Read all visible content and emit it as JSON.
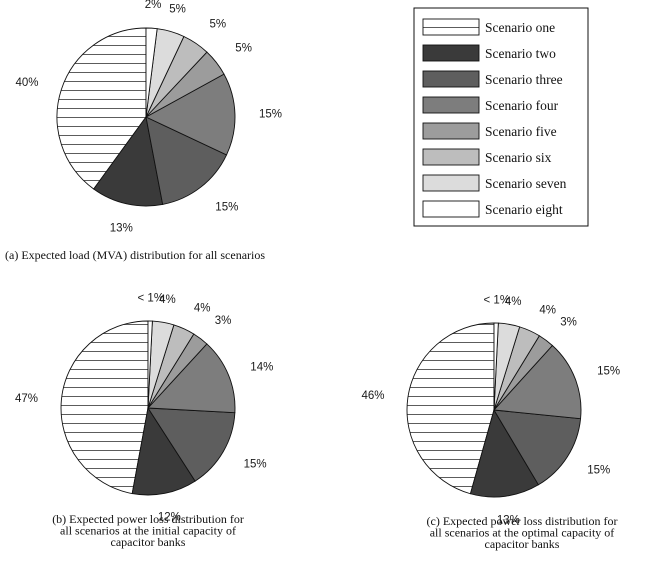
{
  "legend": {
    "entries": [
      "Scenario one",
      "Scenario two",
      "Scenario three",
      "Scenario four",
      "Scenario five",
      "Scenario six",
      "Scenario seven",
      "Scenario eight"
    ]
  },
  "series_styles": [
    {
      "fill": "#ffffff",
      "pattern": "horizontal-lines"
    },
    {
      "fill": "#3a3a3a"
    },
    {
      "fill": "#5e5e5e"
    },
    {
      "fill": "#7d7d7d"
    },
    {
      "fill": "#9c9c9c"
    },
    {
      "fill": "#bdbdbd"
    },
    {
      "fill": "#dcdcdc"
    },
    {
      "fill": "#ffffff"
    }
  ],
  "chart_data": [
    {
      "type": "pie",
      "caption": [
        "(a) Expected load (MVA) distribution for all scenarios"
      ],
      "categories": [
        "Scenario one",
        "Scenario two",
        "Scenario three",
        "Scenario four",
        "Scenario five",
        "Scenario six",
        "Scenario seven",
        "Scenario eight"
      ],
      "values": [
        40,
        13,
        15,
        15,
        5,
        5,
        5,
        2
      ],
      "labels": [
        "40%",
        "13%",
        "15%",
        "15%",
        "5%",
        "5%",
        "5%",
        "2%"
      ]
    },
    {
      "type": "pie",
      "caption": [
        "(b) Expected power loss distribution for",
        "all scenarios at the initial capacity of",
        "capacitor banks"
      ],
      "categories": [
        "Scenario one",
        "Scenario two",
        "Scenario three",
        "Scenario four",
        "Scenario five",
        "Scenario six",
        "Scenario seven",
        "Scenario eight"
      ],
      "values": [
        47,
        12,
        15,
        14,
        3,
        4,
        4,
        0.8
      ],
      "labels": [
        "47%",
        "12%",
        "15%",
        "14%",
        "3%",
        "4%",
        "4%",
        "< 1%"
      ]
    },
    {
      "type": "pie",
      "caption": [
        "(c) Expected power loss distribution for",
        "all scenarios at the optimal capacity of",
        "capacitor banks"
      ],
      "categories": [
        "Scenario one",
        "Scenario two",
        "Scenario three",
        "Scenario four",
        "Scenario five",
        "Scenario six",
        "Scenario seven",
        "Scenario eight"
      ],
      "values": [
        46,
        13,
        15,
        15,
        3,
        4,
        4,
        0.8
      ],
      "labels": [
        "46%",
        "13%",
        "15%",
        "15%",
        "3%",
        "4%",
        "4%",
        "< 1%"
      ]
    }
  ]
}
